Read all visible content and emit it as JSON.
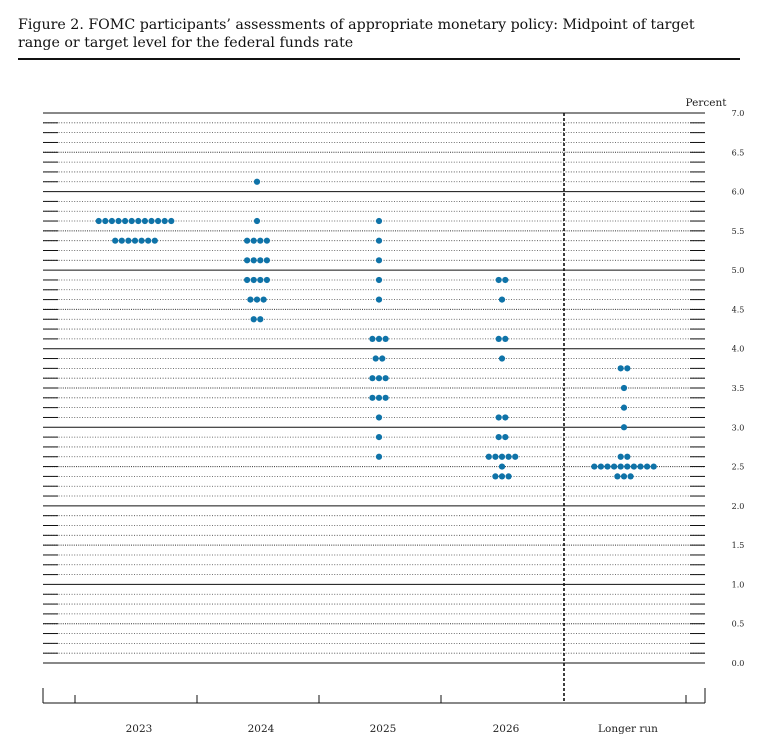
{
  "figure": {
    "title": "Figure 2.  FOMC participants’ assessments of appropriate monetary policy: Midpoint of target range or target level for the federal funds rate"
  },
  "chart_data": {
    "type": "scatter",
    "title": "Figure 2.  FOMC participants’ assessments of appropriate monetary policy: Midpoint of target range or target level for the federal funds rate",
    "ylabel": "Percent",
    "xlabel": "",
    "ylim": [
      0,
      7
    ],
    "yticks": [
      "0.0",
      "0.5",
      "1.0",
      "1.5",
      "2.0",
      "2.5",
      "3.0",
      "3.5",
      "4.0",
      "4.5",
      "5.0",
      "5.5",
      "6.0",
      "6.5",
      "7.0"
    ],
    "categories": [
      "2023",
      "2024",
      "2025",
      "2026",
      "Longer run"
    ],
    "grid": true,
    "dot_color": "#0f73a8",
    "series": [
      {
        "values": [
          {
            "y": 5.625,
            "count": 12
          },
          {
            "y": 5.375,
            "count": 7
          }
        ]
      },
      {
        "values": [
          {
            "y": 6.125,
            "count": 1
          },
          {
            "y": 5.625,
            "count": 1
          },
          {
            "y": 5.375,
            "count": 4
          },
          {
            "y": 5.125,
            "count": 4
          },
          {
            "y": 4.875,
            "count": 4
          },
          {
            "y": 4.625,
            "count": 3
          },
          {
            "y": 4.375,
            "count": 2
          }
        ]
      },
      {
        "values": [
          {
            "y": 5.625,
            "count": 1
          },
          {
            "y": 5.375,
            "count": 1
          },
          {
            "y": 5.125,
            "count": 1
          },
          {
            "y": 4.875,
            "count": 1
          },
          {
            "y": 4.625,
            "count": 1
          },
          {
            "y": 4.125,
            "count": 3
          },
          {
            "y": 3.875,
            "count": 2
          },
          {
            "y": 3.625,
            "count": 3
          },
          {
            "y": 3.375,
            "count": 3
          },
          {
            "y": 3.125,
            "count": 1
          },
          {
            "y": 2.875,
            "count": 1
          },
          {
            "y": 2.625,
            "count": 1
          }
        ]
      },
      {
        "values": [
          {
            "y": 4.875,
            "count": 2
          },
          {
            "y": 4.625,
            "count": 1
          },
          {
            "y": 4.125,
            "count": 2
          },
          {
            "y": 3.875,
            "count": 1
          },
          {
            "y": 3.125,
            "count": 2
          },
          {
            "y": 2.875,
            "count": 2
          },
          {
            "y": 2.625,
            "count": 5
          },
          {
            "y": 2.5,
            "count": 1
          },
          {
            "y": 2.375,
            "count": 3
          }
        ]
      },
      {
        "values": [
          {
            "y": 3.75,
            "count": 2
          },
          {
            "y": 3.5,
            "count": 1
          },
          {
            "y": 3.25,
            "count": 1
          },
          {
            "y": 3.0,
            "count": 1
          },
          {
            "y": 2.625,
            "count": 2
          },
          {
            "y": 2.5,
            "count": 10
          },
          {
            "y": 2.375,
            "count": 3
          }
        ]
      }
    ]
  }
}
